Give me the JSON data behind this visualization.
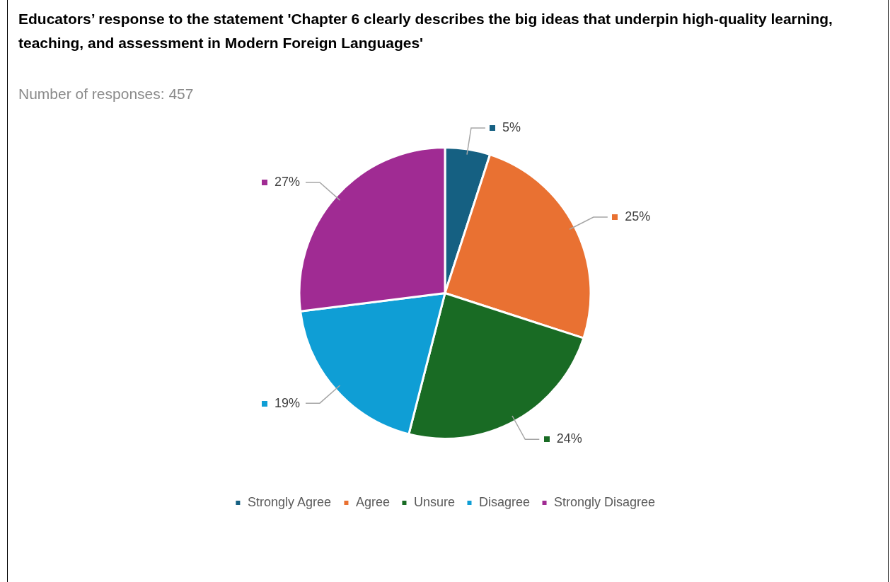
{
  "chart_data": {
    "type": "pie",
    "title": "Educators’ response to the statement 'Chapter 6 clearly describes the big ideas that underpin high-quality learning, teaching, and assessment in Modern Foreign Languages'",
    "subtitle": "Number of responses: 457",
    "categories": [
      "Strongly Agree",
      "Agree",
      "Unsure",
      "Disagree",
      "Strongly Disagree"
    ],
    "values": [
      5,
      25,
      24,
      19,
      27
    ],
    "value_labels": [
      "5%",
      "25%",
      "24%",
      "19%",
      "27%"
    ],
    "colors": [
      "#156082",
      "#e97132",
      "#196b24",
      "#0f9ed5",
      "#a02b93"
    ],
    "legend": "bottom"
  }
}
